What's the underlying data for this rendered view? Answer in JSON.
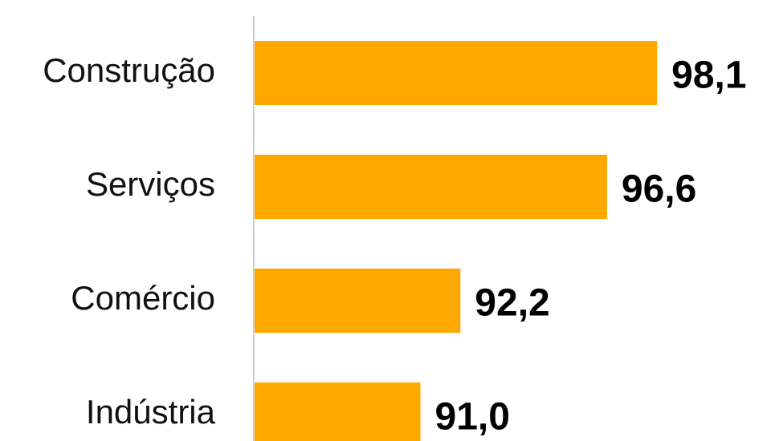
{
  "chart_data": {
    "type": "bar",
    "orientation": "horizontal",
    "categories": [
      "Construção",
      "Serviços",
      "Comércio",
      "Indústria"
    ],
    "values": [
      98.1,
      96.6,
      92.2,
      91.0
    ],
    "value_labels": [
      "98,1",
      "96,6",
      "92,2",
      "91,0"
    ],
    "color": "#ffa800",
    "xlim": [
      86,
      100
    ]
  }
}
